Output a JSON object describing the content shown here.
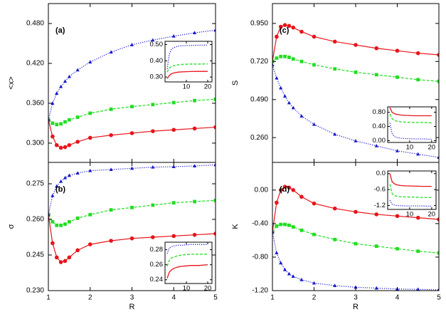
{
  "chart_data": [
    {
      "type": "line",
      "panel_label": "(a)",
      "ylabel": "<x>",
      "xlim": [
        1,
        5
      ],
      "ylim": [
        0.271,
        0.51
      ],
      "yticks": [
        {
          "value": 0.3,
          "label": "0.300"
        },
        {
          "value": 0.36,
          "label": "0.360"
        },
        {
          "value": 0.42,
          "label": "0.420"
        },
        {
          "value": 0.48,
          "label": "0.480"
        }
      ],
      "x": [
        1,
        1.1,
        1.2,
        1.3,
        1.4,
        1.5,
        1.7,
        2,
        2.5,
        3,
        3.5,
        4,
        4.5,
        5
      ],
      "series": [
        {
          "color": "#e8141a",
          "marker": "circle",
          "linestyle": "solid",
          "values": [
            0.335,
            0.31,
            0.297,
            0.293,
            0.294,
            0.297,
            0.302,
            0.308,
            0.312,
            0.315,
            0.318,
            0.32,
            0.322,
            0.324
          ]
        },
        {
          "color": "#22dd22",
          "marker": "square",
          "linestyle": "dashed",
          "values": [
            0.335,
            0.33,
            0.328,
            0.329,
            0.332,
            0.335,
            0.339,
            0.345,
            0.351,
            0.355,
            0.358,
            0.361,
            0.364,
            0.366
          ]
        },
        {
          "color": "#1a1acc",
          "marker": "triangle",
          "linestyle": "dotted",
          "values": [
            0.335,
            0.36,
            0.375,
            0.385,
            0.393,
            0.4,
            0.41,
            0.422,
            0.437,
            0.448,
            0.455,
            0.461,
            0.466,
            0.47
          ]
        }
      ],
      "inset": {
        "type": "line",
        "xlim": [
          0,
          22
        ],
        "ylim": [
          0.27,
          0.52
        ],
        "xticks": [
          10,
          20
        ],
        "yticks": [
          {
            "value": 0.3,
            "label": "0.30"
          },
          {
            "value": 0.4,
            "label": "0.40"
          },
          {
            "value": 0.5,
            "label": "0.50"
          }
        ],
        "x": [
          1,
          2,
          3,
          4,
          6,
          8,
          12,
          16,
          20
        ],
        "series": [
          {
            "color": "#e8141a",
            "linestyle": "solid",
            "values": [
              0.29,
              0.31,
              0.32,
              0.325,
              0.33,
              0.332,
              0.334,
              0.335,
              0.335
            ]
          },
          {
            "color": "#22dd22",
            "linestyle": "dashed",
            "values": [
              0.33,
              0.355,
              0.365,
              0.37,
              0.375,
              0.378,
              0.38,
              0.38,
              0.381
            ]
          },
          {
            "color": "#1a1acc",
            "linestyle": "dotted",
            "values": [
              0.35,
              0.44,
              0.47,
              0.48,
              0.49,
              0.493,
              0.495,
              0.496,
              0.497
            ]
          }
        ]
      }
    },
    {
      "type": "line",
      "panel_label": "(b)",
      "ylabel": "σ",
      "xlabel": "R",
      "xlim": [
        1,
        5
      ],
      "ylim": [
        0.23,
        0.284
      ],
      "xticks": [
        1,
        2,
        3,
        4,
        5
      ],
      "yticks": [
        {
          "value": 0.23,
          "label": "0.230"
        },
        {
          "value": 0.245,
          "label": "0.245"
        },
        {
          "value": 0.26,
          "label": "0.260"
        },
        {
          "value": 0.275,
          "label": "0.275"
        }
      ],
      "x": [
        1,
        1.1,
        1.2,
        1.3,
        1.4,
        1.5,
        1.7,
        2,
        2.5,
        3,
        3.5,
        4,
        4.5,
        5
      ],
      "series": [
        {
          "color": "#e8141a",
          "marker": "circle",
          "linestyle": "solid",
          "values": [
            0.262,
            0.25,
            0.244,
            0.242,
            0.2425,
            0.244,
            0.247,
            0.2495,
            0.251,
            0.252,
            0.2525,
            0.253,
            0.2535,
            0.254
          ]
        },
        {
          "color": "#22dd22",
          "marker": "square",
          "linestyle": "dashed",
          "values": [
            0.262,
            0.259,
            0.2575,
            0.2575,
            0.258,
            0.259,
            0.2605,
            0.262,
            0.264,
            0.265,
            0.266,
            0.267,
            0.2675,
            0.268
          ]
        },
        {
          "color": "#1a1acc",
          "marker": "triangle",
          "linestyle": "dotted",
          "values": [
            0.262,
            0.27,
            0.274,
            0.276,
            0.2775,
            0.2785,
            0.2795,
            0.2805,
            0.281,
            0.2815,
            0.282,
            0.2822,
            0.2825,
            0.283
          ]
        }
      ],
      "inset": {
        "type": "line",
        "xlim": [
          0,
          22
        ],
        "ylim": [
          0.235,
          0.29
        ],
        "xticks": [
          10,
          20
        ],
        "yticks": [
          {
            "value": 0.24,
            "label": "0.24"
          },
          {
            "value": 0.26,
            "label": "0.26"
          },
          {
            "value": 0.28,
            "label": "0.28"
          }
        ],
        "x": [
          1,
          2,
          3,
          4,
          6,
          8,
          12,
          16,
          20
        ],
        "series": [
          {
            "color": "#e8141a",
            "linestyle": "solid",
            "values": [
              0.242,
              0.25,
              0.253,
              0.255,
              0.257,
              0.258,
              0.259,
              0.259,
              0.26
            ]
          },
          {
            "color": "#22dd22",
            "linestyle": "dashed",
            "values": [
              0.258,
              0.266,
              0.269,
              0.27,
              0.272,
              0.273,
              0.274,
              0.274,
              0.274
            ]
          },
          {
            "color": "#1a1acc",
            "linestyle": "dotted",
            "values": [
              0.275,
              0.282,
              0.284,
              0.285,
              0.286,
              0.286,
              0.287,
              0.287,
              0.287
            ]
          }
        ]
      }
    },
    {
      "type": "line",
      "panel_label": "(c)",
      "ylabel": "S",
      "xlim": [
        1,
        5
      ],
      "ylim": [
        0.11,
        1.07
      ],
      "yticks": [
        {
          "value": 0.26,
          "label": "0.260"
        },
        {
          "value": 0.49,
          "label": "0.490"
        },
        {
          "value": 0.72,
          "label": "0.720"
        },
        {
          "value": 0.95,
          "label": "0.950"
        }
      ],
      "x": [
        1,
        1.1,
        1.2,
        1.3,
        1.4,
        1.5,
        1.7,
        2,
        2.5,
        3,
        3.5,
        4,
        4.5,
        5
      ],
      "series": [
        {
          "color": "#e8141a",
          "marker": "circle",
          "linestyle": "solid",
          "values": [
            0.72,
            0.87,
            0.93,
            0.94,
            0.935,
            0.925,
            0.9,
            0.87,
            0.84,
            0.82,
            0.8,
            0.785,
            0.77,
            0.76
          ]
        },
        {
          "color": "#22dd22",
          "marker": "square",
          "linestyle": "dashed",
          "values": [
            0.72,
            0.74,
            0.75,
            0.75,
            0.745,
            0.735,
            0.72,
            0.7,
            0.675,
            0.655,
            0.64,
            0.625,
            0.61,
            0.6
          ]
        },
        {
          "color": "#1a1acc",
          "marker": "triangle",
          "linestyle": "dotted",
          "values": [
            0.7,
            0.62,
            0.56,
            0.51,
            0.47,
            0.44,
            0.39,
            0.34,
            0.28,
            0.24,
            0.21,
            0.18,
            0.16,
            0.14
          ]
        }
      ],
      "inset": {
        "type": "line",
        "xlim": [
          0,
          22
        ],
        "ylim": [
          -0.05,
          0.95
        ],
        "xticks": [
          10,
          20
        ],
        "yticks": [
          {
            "value": 0,
            "label": "0.00"
          },
          {
            "value": 0.4,
            "label": "0.40"
          },
          {
            "value": 0.8,
            "label": "0.80"
          }
        ],
        "x": [
          1,
          2,
          3,
          4,
          6,
          8,
          12,
          16,
          20
        ],
        "series": [
          {
            "color": "#e8141a",
            "linestyle": "solid",
            "values": [
              0.93,
              0.8,
              0.76,
              0.74,
              0.72,
              0.71,
              0.7,
              0.7,
              0.7
            ]
          },
          {
            "color": "#22dd22",
            "linestyle": "dashed",
            "values": [
              0.75,
              0.62,
              0.57,
              0.55,
              0.53,
              0.52,
              0.51,
              0.51,
              0.5
            ]
          },
          {
            "color": "#1a1acc",
            "linestyle": "dotted",
            "values": [
              0.5,
              0.2,
              0.12,
              0.09,
              0.07,
              0.06,
              0.05,
              0.05,
              0.04
            ]
          }
        ]
      }
    },
    {
      "type": "line",
      "panel_label": "(d)",
      "ylabel": "K",
      "xlabel": "R",
      "xlim": [
        1,
        5
      ],
      "ylim": [
        -1.2,
        0.33
      ],
      "xticks": [
        1,
        2,
        3,
        4,
        5
      ],
      "yticks": [
        {
          "value": -1.2,
          "label": "-1.20"
        },
        {
          "value": -0.8,
          "label": "-0.80"
        },
        {
          "value": -0.4,
          "label": "-0.40"
        },
        {
          "value": 0,
          "label": "0.00"
        }
      ],
      "x": [
        1,
        1.1,
        1.2,
        1.3,
        1.4,
        1.5,
        1.7,
        2,
        2.5,
        3,
        3.5,
        4,
        4.5,
        5
      ],
      "series": [
        {
          "color": "#e8141a",
          "marker": "circle",
          "linestyle": "solid",
          "values": [
            -0.5,
            -0.15,
            0.0,
            0.04,
            0.03,
            0.0,
            -0.08,
            -0.16,
            -0.22,
            -0.26,
            -0.29,
            -0.31,
            -0.33,
            -0.35
          ]
        },
        {
          "color": "#22dd22",
          "marker": "square",
          "linestyle": "dashed",
          "values": [
            -0.5,
            -0.43,
            -0.41,
            -0.41,
            -0.42,
            -0.44,
            -0.48,
            -0.53,
            -0.59,
            -0.64,
            -0.67,
            -0.7,
            -0.73,
            -0.75
          ]
        },
        {
          "color": "#1a1acc",
          "marker": "triangle",
          "linestyle": "dotted",
          "values": [
            -0.5,
            -0.75,
            -0.87,
            -0.95,
            -1.0,
            -1.03,
            -1.07,
            -1.11,
            -1.14,
            -1.16,
            -1.17,
            -1.18,
            -1.185,
            -1.19
          ]
        }
      ],
      "inset": {
        "type": "line",
        "xlim": [
          0,
          22
        ],
        "ylim": [
          -1.35,
          0.1
        ],
        "xticks": [
          10,
          20
        ],
        "yticks": [
          {
            "value": -1.2,
            "label": "-1.2"
          },
          {
            "value": -0.6,
            "label": "-0.6"
          },
          {
            "value": 0,
            "label": "0.0"
          }
        ],
        "x": [
          1,
          2,
          3,
          4,
          6,
          8,
          12,
          16,
          20
        ],
        "series": [
          {
            "color": "#e8141a",
            "linestyle": "solid",
            "values": [
              0.0,
              -0.3,
              -0.38,
              -0.42,
              -0.45,
              -0.46,
              -0.47,
              -0.48,
              -0.48
            ]
          },
          {
            "color": "#22dd22",
            "linestyle": "dashed",
            "values": [
              -0.4,
              -0.75,
              -0.82,
              -0.85,
              -0.87,
              -0.88,
              -0.89,
              -0.9,
              -0.9
            ]
          },
          {
            "color": "#1a1acc",
            "linestyle": "dotted",
            "values": [
              -1.0,
              -1.15,
              -1.18,
              -1.2,
              -1.21,
              -1.22,
              -1.22,
              -1.22,
              -1.23
            ]
          }
        ]
      }
    }
  ]
}
